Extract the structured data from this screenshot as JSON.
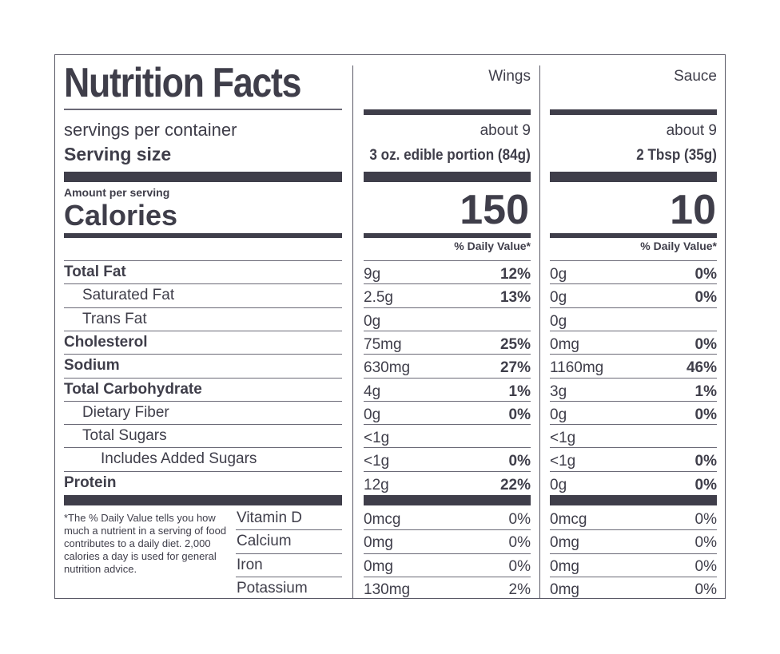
{
  "title": "Nutrition Facts",
  "columns": [
    {
      "name": "Wings",
      "servings": "about 9",
      "serving_size": "3 oz. edible portion (84g)",
      "calories": "150",
      "dv_header": "% Daily Value*"
    },
    {
      "name": "Sauce",
      "servings": "about 9",
      "serving_size": "2 Tbsp (35g)",
      "calories": "10",
      "dv_header": "% Daily Value*"
    }
  ],
  "labels": {
    "servings": "servings per container",
    "serving_size": "Serving size",
    "amount_per_serving": "Amount per serving",
    "calories": "Calories"
  },
  "nutrients": [
    {
      "name": "Total Fat",
      "bold": true,
      "indent": 0,
      "wings": {
        "amount": "9g",
        "dv": "12%"
      },
      "sauce": {
        "amount": "0g",
        "dv": "0%"
      }
    },
    {
      "name": "Saturated Fat",
      "bold": false,
      "indent": 1,
      "wings": {
        "amount": "2.5g",
        "dv": "13%"
      },
      "sauce": {
        "amount": "0g",
        "dv": "0%"
      }
    },
    {
      "name": "Trans Fat",
      "bold": false,
      "indent": 1,
      "wings": {
        "amount": "0g",
        "dv": ""
      },
      "sauce": {
        "amount": "0g",
        "dv": ""
      }
    },
    {
      "name": "Cholesterol",
      "bold": true,
      "indent": 0,
      "wings": {
        "amount": "75mg",
        "dv": "25%"
      },
      "sauce": {
        "amount": "0mg",
        "dv": "0%"
      }
    },
    {
      "name": "Sodium",
      "bold": true,
      "indent": 0,
      "wings": {
        "amount": "630mg",
        "dv": "27%"
      },
      "sauce": {
        "amount": "1160mg",
        "dv": "46%"
      }
    },
    {
      "name": "Total Carbohydrate",
      "bold": true,
      "indent": 0,
      "wings": {
        "amount": "4g",
        "dv": "1%"
      },
      "sauce": {
        "amount": "3g",
        "dv": "1%"
      }
    },
    {
      "name": "Dietary Fiber",
      "bold": false,
      "indent": 1,
      "wings": {
        "amount": "0g",
        "dv": "0%"
      },
      "sauce": {
        "amount": "0g",
        "dv": "0%"
      }
    },
    {
      "name": "Total Sugars",
      "bold": false,
      "indent": 1,
      "wings": {
        "amount": "<1g",
        "dv": ""
      },
      "sauce": {
        "amount": "<1g",
        "dv": ""
      }
    },
    {
      "name": "Includes Added Sugars",
      "bold": false,
      "indent": 2,
      "wings": {
        "amount": "<1g",
        "dv": "0%"
      },
      "sauce": {
        "amount": "<1g",
        "dv": "0%"
      }
    },
    {
      "name": "Protein",
      "bold": true,
      "indent": 0,
      "wings": {
        "amount": "12g",
        "dv": "22%"
      },
      "sauce": {
        "amount": "0g",
        "dv": "0%"
      }
    }
  ],
  "vitamins": [
    {
      "name": "Vitamin D",
      "wings": {
        "amount": "0mcg",
        "dv": "0%"
      },
      "sauce": {
        "amount": "0mcg",
        "dv": "0%"
      }
    },
    {
      "name": "Calcium",
      "wings": {
        "amount": "0mg",
        "dv": "0%"
      },
      "sauce": {
        "amount": "0mg",
        "dv": "0%"
      }
    },
    {
      "name": "Iron",
      "wings": {
        "amount": "0mg",
        "dv": "0%"
      },
      "sauce": {
        "amount": "0mg",
        "dv": "0%"
      }
    },
    {
      "name": "Potassium",
      "wings": {
        "amount": "130mg",
        "dv": "2%"
      },
      "sauce": {
        "amount": "0mg",
        "dv": "0%"
      }
    }
  ],
  "footnote": "*The % Daily Value tells you how much a nutrient in a serving of food contributes to a daily diet. 2,000 calories a day is used for general nutrition advice.",
  "colors": {
    "ink": "#3f3e4a",
    "rule": "#6a6976"
  }
}
